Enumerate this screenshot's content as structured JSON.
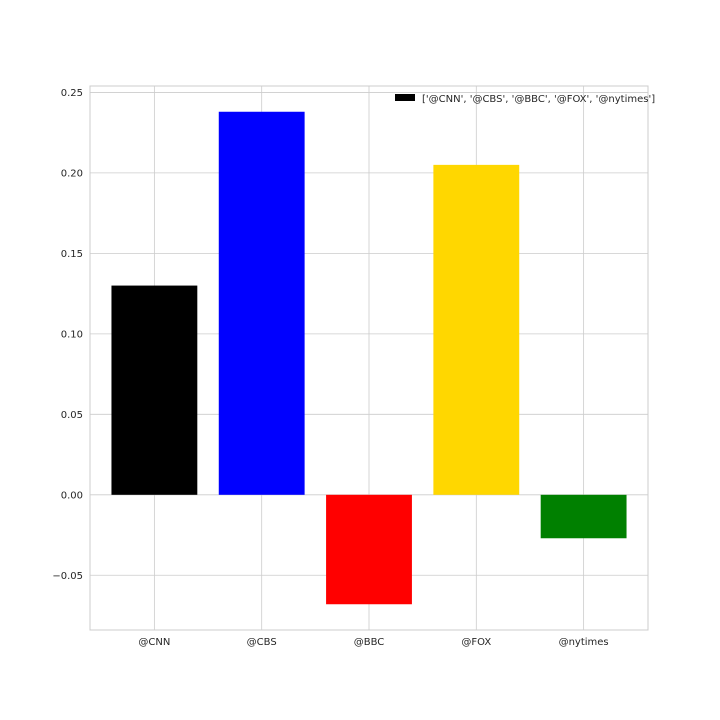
{
  "chart_data": {
    "type": "bar",
    "categories": [
      "@CNN",
      "@CBS",
      "@BBC",
      "@FOX",
      "@nytimes"
    ],
    "values": [
      0.13,
      0.238,
      -0.068,
      0.205,
      -0.027
    ],
    "colors": [
      "#000000",
      "#0000ff",
      "#ff0000",
      "#ffd700",
      "#008000"
    ],
    "ylim": [
      -0.084,
      0.254
    ],
    "yticks": [
      -0.05,
      0.0,
      0.05,
      0.1,
      0.15,
      0.2,
      0.25
    ],
    "ytick_labels": [
      "−0.05",
      "0.00",
      "0.05",
      "0.10",
      "0.15",
      "0.20",
      "0.25"
    ],
    "grid": true,
    "legend": {
      "placement": "top-right",
      "label": "['@CNN', '@CBS', '@BBC', '@FOX', '@nytimes']",
      "color": "#000000"
    }
  }
}
